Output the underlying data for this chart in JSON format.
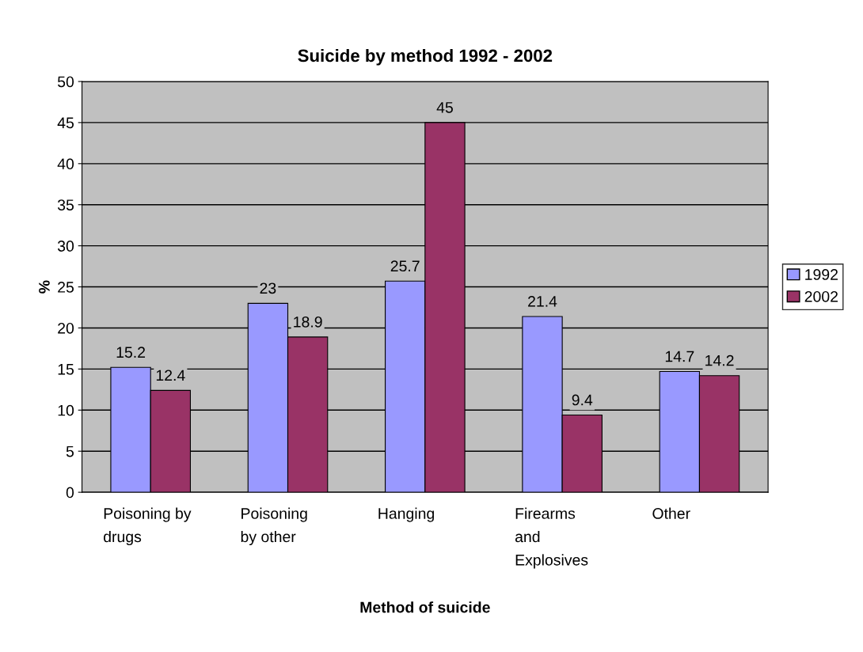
{
  "chart_data": {
    "type": "bar",
    "title": "Suicide by method 1992 - 2002",
    "xlabel": "Method of suicide",
    "ylabel": "%",
    "categories": [
      "Poisoning by\ndrugs",
      "Poisoning\nby other",
      "Hanging",
      "Firearms\nand\nExplosives",
      "Other"
    ],
    "series": [
      {
        "name": "1992",
        "color": "#9999ff",
        "values": [
          15.2,
          23,
          25.7,
          21.4,
          14.7
        ]
      },
      {
        "name": "2002",
        "color": "#993366",
        "values": [
          12.4,
          18.9,
          45,
          9.4,
          14.2
        ]
      }
    ],
    "ylim": [
      0,
      50
    ],
    "yticks": [
      0,
      5,
      10,
      15,
      20,
      25,
      30,
      35,
      40,
      45,
      50
    ],
    "grid": "y",
    "legend": "right",
    "data_labels": true
  }
}
